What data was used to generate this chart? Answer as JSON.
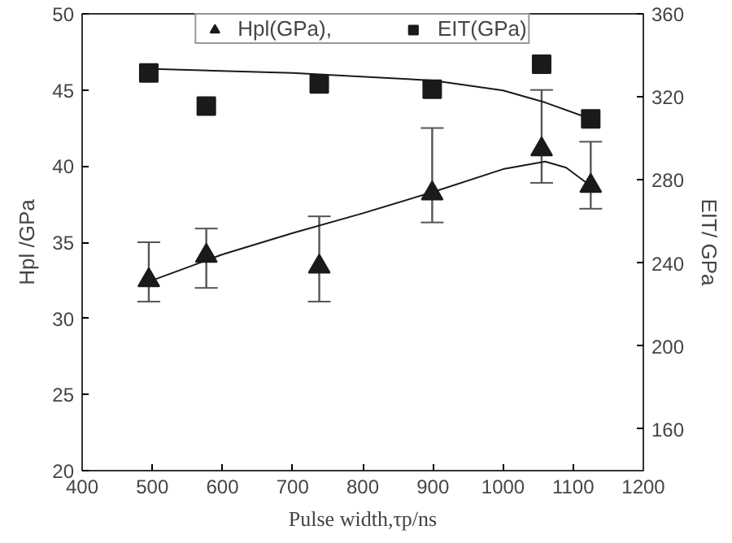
{
  "chart_data": {
    "type": "scatter",
    "xlabel": "Pulse width,τp/ns",
    "ylabel": "Hpl /GPa",
    "y2label": "EIT/ GPa",
    "xlim": [
      400,
      1200
    ],
    "xticks": [
      400,
      500,
      600,
      700,
      800,
      900,
      1000,
      1100,
      1200
    ],
    "ylim": [
      20,
      50
    ],
    "yticks": [
      20,
      25,
      30,
      35,
      40,
      45,
      50
    ],
    "y2lim": [
      140,
      360
    ],
    "y2ticks": [
      160,
      200,
      240,
      280,
      320,
      360
    ],
    "grid": false,
    "legend": "top",
    "series": [
      {
        "name": "Hpl(GPa),",
        "marker": "triangle",
        "color": "#1a1a1a",
        "x": [
          495,
          577,
          738,
          899,
          1055,
          1125
        ],
        "values": [
          32.5,
          34.1,
          33.4,
          38.2,
          41.1,
          38.7
        ],
        "errors": [
          [
            31.1,
            35.0
          ],
          [
            32.0,
            35.9
          ],
          [
            31.1,
            36.7
          ],
          [
            36.3,
            42.5
          ],
          [
            38.9,
            45.0
          ],
          [
            37.2,
            41.6
          ]
        ]
      },
      {
        "name": "EIT(GPa)",
        "marker": "square",
        "axis": "y2",
        "color": "#1a1a1a",
        "x": [
          495,
          577,
          738,
          899,
          1055,
          1125
        ],
        "values": [
          331.5,
          315.6,
          326.2,
          323.7,
          335.7,
          309.4
        ]
      },
      {
        "type": "line",
        "color": "#1a1a1a",
        "x": [
          500,
          600,
          700,
          800,
          900,
          1000,
          1060,
          1090,
          1125
        ],
        "values": [
          32.5,
          34.2,
          35.6,
          36.9,
          38.3,
          39.8,
          40.3,
          39.9,
          38.7
        ]
      },
      {
        "type": "line",
        "axis": "y2",
        "color": "#1a1a1a",
        "x": [
          500,
          700,
          900,
          1000,
          1060,
          1125
        ],
        "values": [
          333.5,
          331.5,
          327.9,
          323.1,
          317.3,
          309.4
        ]
      }
    ]
  }
}
